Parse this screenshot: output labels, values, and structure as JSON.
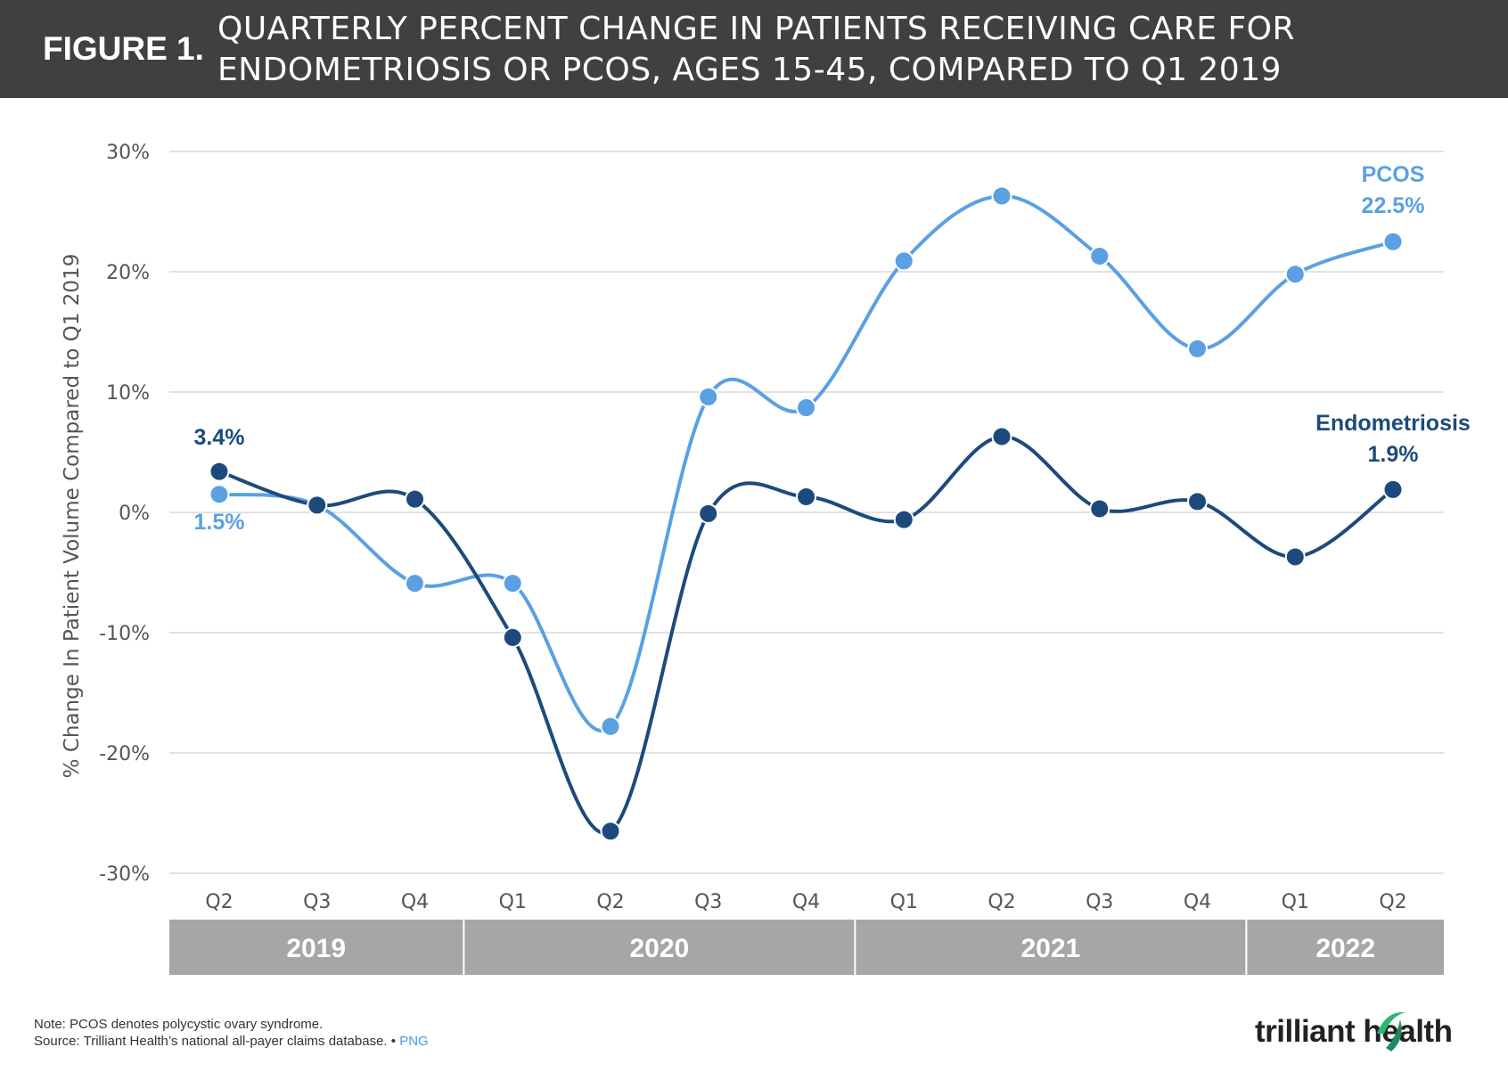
{
  "header": {
    "figure_label": "FIGURE 1.",
    "title_line1": "QUARTERLY PERCENT CHANGE IN PATIENTS RECEIVING CARE FOR",
    "title_line2": "ENDOMETRIOSIS OR PCOS, AGES 15-45, COMPARED TO Q1 2019"
  },
  "chart_data": {
    "type": "line",
    "title": "QUARTERLY PERCENT CHANGE IN PATIENTS RECEIVING CARE FOR ENDOMETRIOSIS OR PCOS, AGES 15-45, COMPARED TO Q1 2019",
    "ylabel": "% Change In Patient Volume Compared to Q1 2019",
    "xlabel": "",
    "ylim": [
      -30,
      30
    ],
    "yticks": [
      30,
      20,
      10,
      0,
      -10,
      -20,
      -30
    ],
    "ytick_labels": [
      "30%",
      "20%",
      "10%",
      "0%",
      "-10%",
      "-20%",
      "-30%"
    ],
    "categories": [
      "Q2",
      "Q3",
      "Q4",
      "Q1",
      "Q2",
      "Q3",
      "Q4",
      "Q1",
      "Q2",
      "Q3",
      "Q4",
      "Q1",
      "Q2"
    ],
    "year_groups": [
      {
        "label": "2019",
        "count": 3
      },
      {
        "label": "2020",
        "count": 4
      },
      {
        "label": "2021",
        "count": 4
      },
      {
        "label": "2022",
        "count": 2
      }
    ],
    "grid": true,
    "series": [
      {
        "name": "PCOS",
        "color": "#5aa0e3",
        "values": [
          1.5,
          0.6,
          -5.9,
          -5.9,
          -17.8,
          9.6,
          8.7,
          20.9,
          26.3,
          21.3,
          13.6,
          19.8,
          22.5
        ],
        "end_label": "PCOS",
        "end_value_label": "22.5%",
        "start_value_label": "1.5%"
      },
      {
        "name": "Endometriosis",
        "color": "#1d4a7c",
        "values": [
          3.4,
          0.6,
          1.1,
          -10.4,
          -26.5,
          -0.1,
          1.3,
          -0.6,
          6.3,
          0.3,
          0.9,
          -3.7,
          1.9
        ],
        "end_label": "Endometriosis",
        "end_value_label": "1.9%",
        "start_value_label": "3.4%"
      }
    ]
  },
  "footer": {
    "note": "Note: PCOS denotes polycystic ovary syndrome.",
    "source": "Source: Trilliant Health’s national all-payer claims database.",
    "separator": "•",
    "png_link": "PNG",
    "logo_text": "trilliant health"
  },
  "colors": {
    "header_bg": "#404040",
    "pcos": "#5aa0e3",
    "endometriosis": "#1d4a7c",
    "year_band": "#a6a6a6",
    "grid": "#d9d9d9"
  },
  "icons": {
    "logo_mark": "trilliant-swoosh-icon"
  }
}
